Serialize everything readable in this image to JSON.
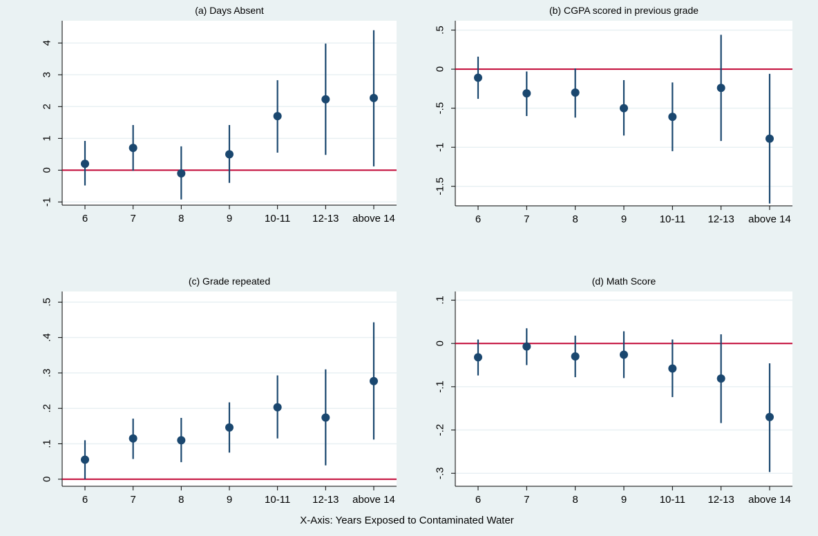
{
  "figure": {
    "xaxis_title": "X-Axis: Years Exposed to Contaminated Water",
    "colors": {
      "background": "#eaf2f3",
      "plot_area": "#ffffff",
      "grid": "#e8f0f3",
      "marker": "#1a476f",
      "reference_line": "#c10534"
    }
  },
  "chart_data": [
    {
      "type": "scatter",
      "title": "(a) Days Absent",
      "categories": [
        "6",
        "7",
        "8",
        "9",
        "10-11",
        "12-13",
        "above 14"
      ],
      "series": [
        {
          "estimate": [
            0.2,
            0.7,
            -0.1,
            0.5,
            1.7,
            2.23,
            2.27
          ],
          "ci_low": [
            -0.48,
            -0.02,
            -0.92,
            -0.4,
            0.55,
            0.48,
            0.12
          ],
          "ci_high": [
            0.92,
            1.42,
            0.75,
            1.42,
            2.83,
            3.98,
            4.4
          ]
        }
      ],
      "yticks": [
        -1,
        0,
        1,
        2,
        3,
        4
      ],
      "ytick_labels": [
        "-1",
        "0",
        "1",
        "2",
        "3",
        "4"
      ],
      "ylim": [
        -1.1,
        4.7
      ],
      "reference_line": 0,
      "grid": true
    },
    {
      "type": "scatter",
      "title": "(b) CGPA scored in previous grade",
      "categories": [
        "6",
        "7",
        "8",
        "9",
        "10-11",
        "12-13",
        "above 14"
      ],
      "series": [
        {
          "estimate": [
            -0.11,
            -0.31,
            -0.3,
            -0.5,
            -0.61,
            -0.24,
            -0.89
          ],
          "ci_low": [
            -0.38,
            -0.6,
            -0.62,
            -0.85,
            -1.05,
            -0.92,
            -1.72
          ],
          "ci_high": [
            0.16,
            -0.03,
            0.01,
            -0.14,
            -0.17,
            0.44,
            -0.06
          ]
        }
      ],
      "yticks": [
        -1.5,
        -1,
        -0.5,
        0,
        0.5
      ],
      "ytick_labels": [
        "-1.5",
        "-1",
        "-.5",
        "0",
        ".5"
      ],
      "ylim": [
        -1.75,
        0.62
      ],
      "reference_line": 0,
      "grid": true
    },
    {
      "type": "scatter",
      "title": "(c) Grade repeated",
      "categories": [
        "6",
        "7",
        "8",
        "9",
        "10-11",
        "12-13",
        "above 14"
      ],
      "series": [
        {
          "estimate": [
            0.055,
            0.115,
            0.11,
            0.146,
            0.203,
            0.174,
            0.277
          ],
          "ci_low": [
            0.0,
            0.057,
            0.048,
            0.075,
            0.115,
            0.039,
            0.112
          ],
          "ci_high": [
            0.11,
            0.171,
            0.173,
            0.217,
            0.293,
            0.31,
            0.443
          ]
        }
      ],
      "yticks": [
        0,
        0.1,
        0.2,
        0.3,
        0.4,
        0.5
      ],
      "ytick_labels": [
        "0",
        ".1",
        ".2",
        ".3",
        ".4",
        ".5"
      ],
      "ylim": [
        -0.02,
        0.53
      ],
      "reference_line": 0,
      "grid": true
    },
    {
      "type": "scatter",
      "title": "(d) Math Score",
      "categories": [
        "6",
        "7",
        "8",
        "9",
        "10-11",
        "12-13",
        "above 14"
      ],
      "series": [
        {
          "estimate": [
            -0.032,
            -0.007,
            -0.03,
            -0.026,
            -0.058,
            -0.081,
            -0.17
          ],
          "ci_low": [
            -0.074,
            -0.05,
            -0.078,
            -0.08,
            -0.124,
            -0.184,
            -0.297
          ],
          "ci_high": [
            0.009,
            0.035,
            0.018,
            0.028,
            0.009,
            0.021,
            -0.046
          ]
        }
      ],
      "yticks": [
        -0.3,
        -0.2,
        -0.1,
        0,
        0.1
      ],
      "ytick_labels": [
        "-.3",
        "-.2",
        "-.1",
        "0",
        ".1"
      ],
      "ylim": [
        -0.33,
        0.12
      ],
      "reference_line": 0,
      "grid": true
    }
  ]
}
